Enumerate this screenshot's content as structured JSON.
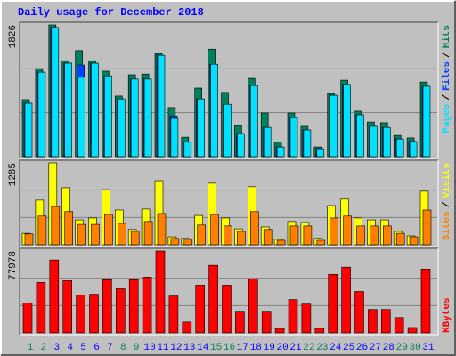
{
  "chart_data": [
    {
      "type": "bar",
      "title": "Daily usage for December 2018",
      "ylim": [
        0,
        1826
      ],
      "yticks": [
        1826
      ],
      "grid": true,
      "legend_separator": "/",
      "series": [
        {
          "name": "Hits",
          "color": "#00805c",
          "values": [
            790,
            1220,
            1826,
            1330,
            1470,
            1330,
            1185,
            840,
            1135,
            1145,
            1430,
            680,
            270,
            950,
            1490,
            890,
            430,
            1085,
            605,
            200,
            605,
            420,
            135,
            875,
            1060,
            630,
            480,
            470,
            295,
            260,
            1035
          ]
        },
        {
          "name": "Files",
          "color": "#0040ff",
          "values": [
            740,
            1170,
            1790,
            1295,
            1270,
            1295,
            1120,
            800,
            1075,
            1075,
            1405,
            565,
            200,
            800,
            1280,
            725,
            320,
            985,
            405,
            135,
            540,
            370,
            110,
            850,
            1000,
            580,
            420,
            405,
            245,
            210,
            975
          ]
        },
        {
          "name": "Pages",
          "color": "#00e0ff",
          "values": [
            740,
            1170,
            1790,
            1295,
            1100,
            1295,
            1120,
            800,
            1075,
            1075,
            1405,
            530,
            200,
            800,
            1280,
            725,
            320,
            985,
            405,
            135,
            540,
            370,
            110,
            850,
            1000,
            580,
            420,
            405,
            245,
            210,
            975
          ]
        }
      ]
    },
    {
      "type": "bar",
      "ylim": [
        0,
        1285
      ],
      "yticks": [
        1285
      ],
      "grid": true,
      "legend_separator": "/",
      "series": [
        {
          "name": "Visits",
          "color": "#ffff00",
          "values": [
            180,
            700,
            1285,
            895,
            390,
            420,
            865,
            545,
            240,
            560,
            1005,
            125,
            100,
            460,
            965,
            420,
            250,
            910,
            280,
            85,
            365,
            350,
            100,
            615,
            715,
            420,
            390,
            390,
            210,
            140,
            840
          ]
        },
        {
          "name": "Sites",
          "color": "#ff8000",
          "values": [
            170,
            450,
            600,
            520,
            320,
            320,
            475,
            335,
            210,
            365,
            490,
            100,
            85,
            310,
            475,
            295,
            210,
            520,
            240,
            70,
            295,
            295,
            70,
            420,
            450,
            295,
            295,
            295,
            180,
            125,
            545
          ]
        }
      ]
    },
    {
      "type": "bar",
      "ylim": [
        0,
        77978
      ],
      "yticks": [
        77978
      ],
      "grid": true,
      "categories": [
        "1",
        "2",
        "3",
        "4",
        "5",
        "6",
        "7",
        "8",
        "9",
        "10",
        "11",
        "12",
        "13",
        "14",
        "15",
        "16",
        "17",
        "18",
        "19",
        "20",
        "21",
        "22",
        "23",
        "24",
        "25",
        "26",
        "27",
        "28",
        "29",
        "30",
        "31"
      ],
      "category_colors": [
        "#00805c",
        "#00805c",
        "#0000ff",
        "#0000ff",
        "#0000ff",
        "#0000ff",
        "#0000ff",
        "#00805c",
        "#00805c",
        "#0000ff",
        "#0000ff",
        "#0000ff",
        "#0000ff",
        "#0000ff",
        "#00805c",
        "#00805c",
        "#0000ff",
        "#0000ff",
        "#0000ff",
        "#0000ff",
        "#0000ff",
        "#00805c",
        "#00805c",
        "#0000ff",
        "#0000ff",
        "#0000ff",
        "#0000ff",
        "#0000ff",
        "#00805c",
        "#00805c",
        "#0000ff"
      ],
      "series": [
        {
          "name": "KBytes",
          "color": "#ff0000",
          "values": [
            28300,
            48000,
            69400,
            49700,
            36000,
            36800,
            50600,
            42000,
            50600,
            53100,
            77978,
            35100,
            10300,
            45400,
            64300,
            45400,
            20600,
            51400,
            20600,
            4300,
            31700,
            27400,
            4300,
            55700,
            62600,
            39400,
            22300,
            22300,
            14600,
            5100,
            60800
          ]
        }
      ]
    }
  ]
}
